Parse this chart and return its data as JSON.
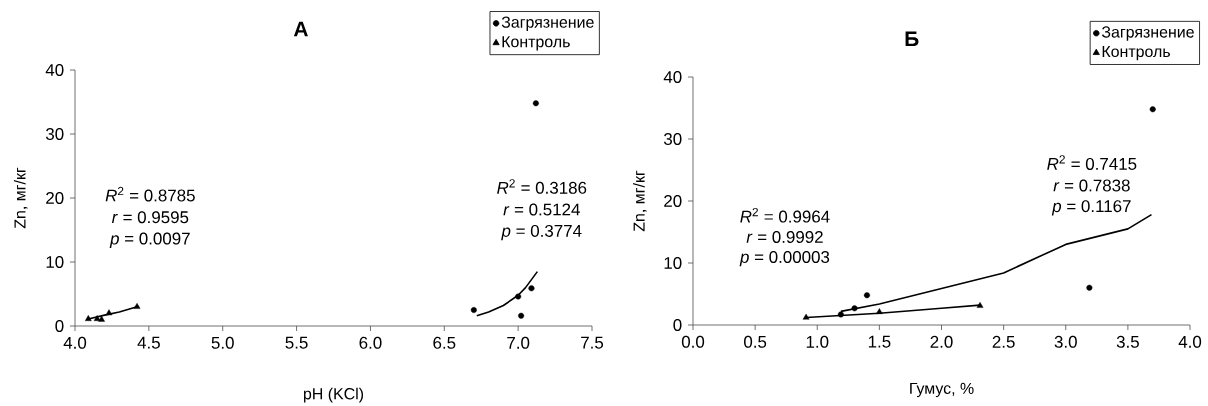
{
  "chart_data": [
    {
      "type": "scatter",
      "title": "А",
      "xlabel": "pH (KCl)",
      "ylabel": "Zn, мг/кг",
      "legend": "top right",
      "xlim": [
        4.0,
        7.5
      ],
      "xticks": [
        {
          "value": 4.0,
          "label": "4.0"
        },
        {
          "value": 4.5,
          "label": "4.5"
        },
        {
          "value": 5.0,
          "label": "5.0"
        },
        {
          "value": 5.5,
          "label": "5.5"
        },
        {
          "value": 6.0,
          "label": "6.0"
        },
        {
          "value": 6.5,
          "label": "6.5"
        },
        {
          "value": 7.0,
          "label": "7.0"
        },
        {
          "value": 7.5,
          "label": "7.5"
        }
      ],
      "ylim": [
        0,
        40
      ],
      "yticks": [
        0,
        10,
        20,
        30,
        40
      ],
      "series": [
        {
          "name": "Загрязнение",
          "marker": "circle",
          "color": "#000000",
          "x": [
            6.7,
            7.0,
            7.02,
            7.09,
            7.12
          ],
          "values": [
            2.5,
            4.6,
            1.6,
            5.9,
            34.8
          ]
        },
        {
          "name": "Контроль",
          "marker": "triangle",
          "color": "#000000",
          "x": [
            4.09,
            4.15,
            4.18,
            4.23,
            4.42
          ],
          "values": [
            1.1,
            1.1,
            1.0,
            2.0,
            3.0
          ]
        },
        {
          "type": "line",
          "marker": "none",
          "color": "#000000",
          "x": [
            6.72,
            6.8,
            6.9,
            7.0,
            7.05,
            7.13
          ],
          "values": [
            1.6,
            2.2,
            3.2,
            4.8,
            6.0,
            8.5
          ]
        },
        {
          "type": "line",
          "marker": "none",
          "color": "#000000",
          "x": [
            4.09,
            4.2,
            4.3,
            4.42
          ],
          "values": [
            1.1,
            1.7,
            2.2,
            3.0
          ]
        }
      ],
      "annotations": [
        "*R*$^{2}$ = 0.8785",
        "*r* = 0.9595",
        "*p* = 0.0097",
        "*R*$^{2}$ = 0.3186",
        "*r* = 0.5124",
        "*p* = 0.3774"
      ]
    },
    {
      "type": "scatter",
      "title": "Б",
      "xlabel": "Гумус, %",
      "ylabel": "Zn, мг/кг",
      "legend": "top right",
      "xlim": [
        0.0,
        4.0
      ],
      "xticks": [
        {
          "value": 0.0,
          "label": "0.0"
        },
        {
          "value": 0.5,
          "label": "0.5"
        },
        {
          "value": 1.0,
          "label": "1.0"
        },
        {
          "value": 1.5,
          "label": "1.5"
        },
        {
          "value": 2.0,
          "label": "2.0"
        },
        {
          "value": 2.5,
          "label": "2.5"
        },
        {
          "value": 3.0,
          "label": "3.0"
        },
        {
          "value": 3.5,
          "label": "3.5"
        },
        {
          "value": 4.0,
          "label": "4.0"
        }
      ],
      "ylim": [
        0,
        40
      ],
      "yticks": [
        0,
        10,
        20,
        30,
        40
      ],
      "series": [
        {
          "name": "Загрязнение",
          "marker": "circle",
          "color": "#000000",
          "x": [
            1.19,
            1.3,
            1.4,
            3.19,
            3.7
          ],
          "values": [
            1.7,
            2.7,
            4.8,
            6.0,
            34.8
          ]
        },
        {
          "name": "Контроль",
          "marker": "triangle",
          "color": "#000000",
          "x": [
            0.91,
            1.5,
            2.31
          ],
          "values": [
            1.2,
            2.1,
            3.1
          ]
        },
        {
          "type": "line",
          "marker": "none",
          "color": "#000000",
          "x": [
            1.19,
            1.5,
            2.0,
            2.5,
            3.0,
            3.5,
            3.69
          ],
          "values": [
            2.2,
            3.4,
            5.9,
            8.4,
            13.0,
            15.5,
            17.8
          ]
        },
        {
          "type": "line",
          "marker": "none",
          "color": "#000000",
          "x": [
            0.91,
            1.5,
            2.0,
            2.31
          ],
          "values": [
            1.2,
            1.9,
            2.7,
            3.2
          ]
        }
      ],
      "annotations": [
        "*R*$^{2}$ = 0.9964",
        "*r* = 0.9992",
        "*p* = 0.00003",
        "*R*$^{2}$ = 0.7415",
        "*r* = 0.7838",
        "*p* = 0.1167"
      ]
    }
  ]
}
